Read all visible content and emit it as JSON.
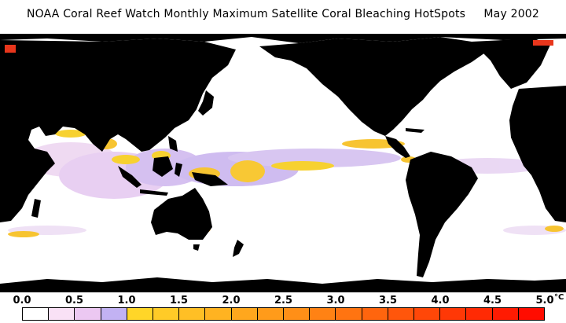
{
  "title": "NOAA Coral Reef Watch Monthly Maximum Satellite Coral Bleaching HotSpots     May 2002",
  "colors": {
    "ocean": "#ffffff",
    "land": "#000000",
    "low_pink": "#f3dcf1",
    "low_lilac": "#c9a8ee",
    "low_purple": "#a7a2ea",
    "yellow": "#f7cf25",
    "orange": "#f7a21a",
    "red": "#e8361c"
  },
  "legend": {
    "unit": "°C",
    "ticks": [
      "0.0",
      "0.5",
      "1.0",
      "1.5",
      "2.0",
      "2.5",
      "3.0",
      "3.5",
      "4.0",
      "4.5",
      "5.0"
    ],
    "swatches": [
      "#ffffff",
      "#f9e1f6",
      "#ecc8f2",
      "#c2b2f3",
      "#ffd628",
      "#ffcb27",
      "#ffbf25",
      "#ffb321",
      "#ffa71d",
      "#ff9b1a",
      "#ff8f17",
      "#ff8214",
      "#ff7411",
      "#ff650e",
      "#ff560b",
      "#ff4708",
      "#ff3806",
      "#ff2a04",
      "#ff1b02",
      "#ff0c00"
    ]
  }
}
